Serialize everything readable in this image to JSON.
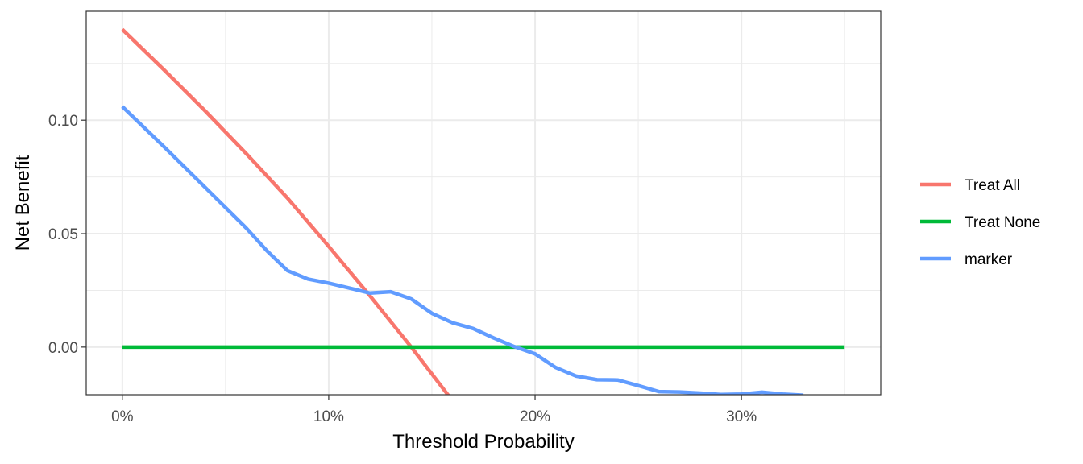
{
  "chart_data": {
    "type": "line",
    "xlabel": "Threshold Probability",
    "ylabel": "Net Benefit",
    "xlim": [
      -0.0175,
      0.3675
    ],
    "ylim": [
      -0.021,
      0.148
    ],
    "x_ticks": [
      0,
      0.1,
      0.2,
      0.3
    ],
    "x_tick_labels": [
      "0%",
      "10%",
      "20%",
      "30%"
    ],
    "y_ticks": [
      0.0,
      0.05,
      0.1
    ],
    "y_tick_labels": [
      "0.00",
      "0.05",
      "0.10"
    ],
    "grid": true,
    "legend_position": "right",
    "series": [
      {
        "name": "Treat All",
        "color": "#F8766D",
        "x": [
          0,
          0.02,
          0.04,
          0.06,
          0.08,
          0.1,
          0.12,
          0.14,
          0.16
        ],
        "y": [
          0.14,
          0.1224,
          0.1042,
          0.0853,
          0.0657,
          0.0444,
          0.0226,
          0.0,
          -0.0237
        ]
      },
      {
        "name": "Treat None",
        "color": "#00BA38",
        "x": [
          0,
          0.35
        ],
        "y": [
          0,
          0
        ]
      },
      {
        "name": "marker",
        "color": "#619CFF",
        "x": [
          0,
          0.02,
          0.04,
          0.06,
          0.07,
          0.08,
          0.09,
          0.1,
          0.11,
          0.12,
          0.13,
          0.14,
          0.15,
          0.16,
          0.17,
          0.18,
          0.19,
          0.2,
          0.21,
          0.22,
          0.23,
          0.24,
          0.25,
          0.26,
          0.27,
          0.28,
          0.29,
          0.3,
          0.31,
          0.32,
          0.33
        ],
        "y": [
          0.106,
          0.0885,
          0.0705,
          0.0525,
          0.0425,
          0.0337,
          0.03,
          0.0282,
          0.026,
          0.0238,
          0.0244,
          0.0212,
          0.0149,
          0.0107,
          0.0082,
          0.004,
          0.0002,
          -0.003,
          -0.009,
          -0.0128,
          -0.0144,
          -0.0145,
          -0.017,
          -0.0196,
          -0.0198,
          -0.0203,
          -0.0209,
          -0.0207,
          -0.0199,
          -0.0207,
          -0.0212
        ]
      }
    ]
  }
}
